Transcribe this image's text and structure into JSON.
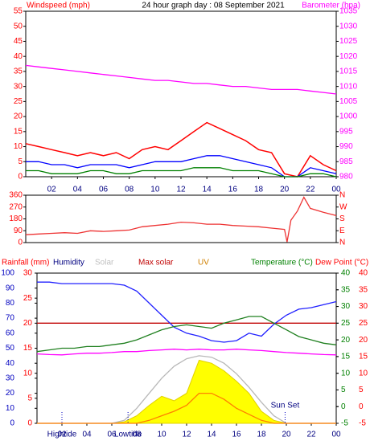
{
  "chart_data": [
    {
      "type": "line",
      "title": "24 hour graph day : 08 September 2021",
      "y_label": "Windspeed (mph)",
      "y2_label": "Barometer (hpa)",
      "y_color": "#ff0000",
      "y2_color": "#ff00ff",
      "x": [
        0,
        1,
        2,
        3,
        4,
        5,
        6,
        7,
        8,
        9,
        10,
        11,
        12,
        13,
        14,
        15,
        16,
        17,
        18,
        19,
        20,
        21,
        22,
        23,
        24
      ],
      "xlim": [
        0,
        24
      ],
      "xticks": [
        {
          "value": 2,
          "label": "02"
        },
        {
          "value": 4,
          "label": "04"
        },
        {
          "value": 6,
          "label": "06"
        },
        {
          "value": 8,
          "label": "08"
        },
        10,
        12,
        14,
        16,
        18,
        20,
        22,
        {
          "value": 24,
          "label": "00"
        }
      ],
      "ylim": [
        0,
        55
      ],
      "yticks": [
        0,
        5,
        10,
        15,
        20,
        25,
        30,
        35,
        40,
        45,
        50,
        55
      ],
      "y2lim": [
        980,
        1035
      ],
      "y2ticks": [
        980,
        985,
        990,
        995,
        1000,
        1005,
        1010,
        1015,
        1020,
        1025,
        1030,
        1035
      ],
      "series": [
        {
          "color": "#ff0000",
          "values": [
            11,
            10,
            9,
            8,
            7,
            8,
            7,
            8,
            6,
            9,
            10,
            9,
            12,
            15,
            18,
            16,
            14,
            12,
            9,
            8,
            1,
            0,
            7,
            4,
            2
          ]
        },
        {
          "color": "#0000ff",
          "values": [
            5,
            5,
            4,
            4,
            3,
            4,
            4,
            4,
            3,
            4,
            5,
            5,
            5,
            6,
            7,
            7,
            6,
            5,
            4,
            3,
            0,
            0,
            3,
            2,
            1
          ]
        },
        {
          "color": "#008000",
          "values": [
            2,
            2,
            1,
            1,
            1,
            2,
            2,
            1,
            1,
            2,
            2,
            2,
            2,
            3,
            3,
            3,
            2,
            2,
            2,
            1,
            0,
            0,
            1,
            1,
            0
          ]
        },
        {
          "color": "#ff00ff",
          "axis": "y2",
          "values": [
            1017,
            1016.5,
            1016,
            1015.5,
            1015,
            1014.5,
            1014,
            1013.5,
            1013,
            1012.5,
            1012,
            1012,
            1011.5,
            1011,
            1011,
            1010.5,
            1010,
            1010,
            1009.5,
            1009,
            1009,
            1009,
            1008.5,
            1008,
            1007.5
          ]
        }
      ]
    },
    {
      "type": "line",
      "y_color": "#ff0000",
      "y2_color": "#ff0000",
      "x": [
        0,
        1,
        2,
        3,
        4,
        5,
        6,
        7,
        8,
        9,
        10,
        11,
        12,
        13,
        14,
        15,
        16,
        17,
        18,
        19,
        20,
        20.2,
        20.5,
        21,
        21.5,
        22,
        23,
        24
      ],
      "xlim": [
        0,
        24
      ],
      "ylim": [
        0,
        360
      ],
      "yticks": [
        0,
        90,
        180,
        270,
        360
      ],
      "y2lim": [
        0,
        360
      ],
      "y2ticks": [
        {
          "value": 0,
          "label": "N"
        },
        {
          "value": 90,
          "label": "E"
        },
        {
          "value": 180,
          "label": "S"
        },
        {
          "value": 270,
          "label": "W"
        },
        {
          "value": 360,
          "label": "N"
        }
      ],
      "series": [
        {
          "color": "#ee3333",
          "values": [
            60,
            65,
            70,
            75,
            70,
            90,
            85,
            90,
            95,
            120,
            130,
            140,
            155,
            150,
            140,
            140,
            130,
            125,
            120,
            110,
            100,
            5,
            170,
            240,
            345,
            260,
            230,
            205
          ]
        }
      ]
    },
    {
      "type": "line",
      "x": [
        0,
        1,
        2,
        3,
        4,
        5,
        6,
        7,
        8,
        9,
        10,
        11,
        12,
        13,
        14,
        15,
        16,
        17,
        18,
        19,
        20,
        21,
        22,
        23,
        24
      ],
      "xlim": [
        0,
        24
      ],
      "xticks": [
        {
          "value": 2,
          "label": "02"
        },
        {
          "value": 4,
          "label": "04"
        },
        {
          "value": 6,
          "label": "06"
        },
        {
          "value": 8,
          "label": "08"
        },
        10,
        12,
        14,
        16,
        18,
        20,
        22,
        {
          "value": 24,
          "label": "00"
        }
      ],
      "ylim": [
        0,
        100
      ],
      "yticks": [
        0,
        10,
        20,
        30,
        40,
        50,
        60,
        70,
        80,
        90,
        100
      ],
      "y_color": "#0000c0",
      "rainfall_lim": [
        0,
        30
      ],
      "rainfall_ticks": [
        0,
        5,
        10,
        15,
        20,
        25,
        30
      ],
      "rainfall_color": "#ff0000",
      "y2lim": [
        -5,
        40
      ],
      "y2ticks": [
        -5,
        0,
        5,
        10,
        15,
        20,
        25,
        30,
        35,
        40
      ],
      "y2_color": "#008000",
      "dewpoint_lim": [
        -5,
        40
      ],
      "dewpoint_ticks": [
        -5,
        0,
        5,
        10,
        15,
        20,
        25,
        30,
        35,
        40
      ],
      "dewpoint_color": "#ff0000",
      "series": [
        {
          "name": "Rainfall (mm)",
          "legend_color": "#ff0000",
          "color": "#c00000",
          "axis": "rainfall",
          "values": [
            20,
            20,
            20,
            20,
            20,
            20,
            20,
            20,
            20,
            20,
            20,
            20,
            20,
            20,
            20,
            20,
            20,
            20,
            20,
            20,
            20,
            20,
            20,
            20,
            20
          ]
        },
        {
          "name": "Humidity",
          "legend_color": "#000080",
          "color": "#2020ff",
          "values": [
            94,
            94,
            93,
            93,
            93,
            93,
            93,
            92,
            88,
            80,
            72,
            64,
            60,
            58,
            55,
            54,
            55,
            60,
            58,
            66,
            72,
            76,
            77,
            79,
            81
          ]
        },
        {
          "name": "Solar",
          "legend_color": "#c0c0c0",
          "color": "#ffff00",
          "style": "area",
          "values": [
            0,
            0,
            0,
            0,
            0,
            0,
            0,
            1,
            5,
            12,
            18,
            15,
            20,
            42,
            40,
            35,
            28,
            20,
            8,
            2,
            0,
            0,
            0,
            0,
            0
          ]
        },
        {
          "name": "Max solar",
          "legend_color": "#c00000",
          "color": "#b8b8b8",
          "values": [
            0,
            0,
            0,
            0,
            0,
            0,
            0,
            2,
            10,
            20,
            30,
            38,
            43,
            45,
            44,
            40,
            33,
            24,
            14,
            5,
            0,
            0,
            0,
            0,
            0
          ]
        },
        {
          "name": "UV",
          "legend_color": "#d08000",
          "color": "#ff8000",
          "values": [
            0,
            0,
            0,
            0,
            0,
            0,
            0,
            0,
            0,
            2,
            5,
            8,
            12,
            20,
            20,
            16,
            10,
            6,
            2,
            0,
            0,
            0,
            0,
            0,
            0
          ]
        },
        {
          "name": "Temperature (°C)",
          "legend_color": "#008000",
          "color": "#208020",
          "axis": "y2",
          "values": [
            16.5,
            17,
            17.5,
            17.5,
            18,
            18,
            18.5,
            19,
            20,
            21.5,
            23,
            24,
            24.5,
            24,
            23.5,
            25,
            26,
            27,
            27,
            25,
            23,
            21,
            20,
            19,
            18.5
          ]
        },
        {
          "name": "Dew Point (°C)",
          "legend_color": "#ff0000",
          "color": "#ff00ff",
          "axis": "dewpoint",
          "values": [
            15.8,
            15.6,
            15.5,
            15.8,
            16,
            16,
            16.2,
            16.5,
            16.5,
            16.8,
            17,
            17.2,
            17,
            17.2,
            17,
            17,
            17.2,
            17,
            16.8,
            16.5,
            16.2,
            16,
            15.8,
            15.6,
            15.5
          ]
        }
      ],
      "annotations": [
        {
          "text": "Hightide",
          "x": 2
        },
        {
          "text": "Lowtide",
          "x": 7.3
        },
        {
          "text": "Sun Set",
          "x": 19.9
        }
      ]
    }
  ]
}
